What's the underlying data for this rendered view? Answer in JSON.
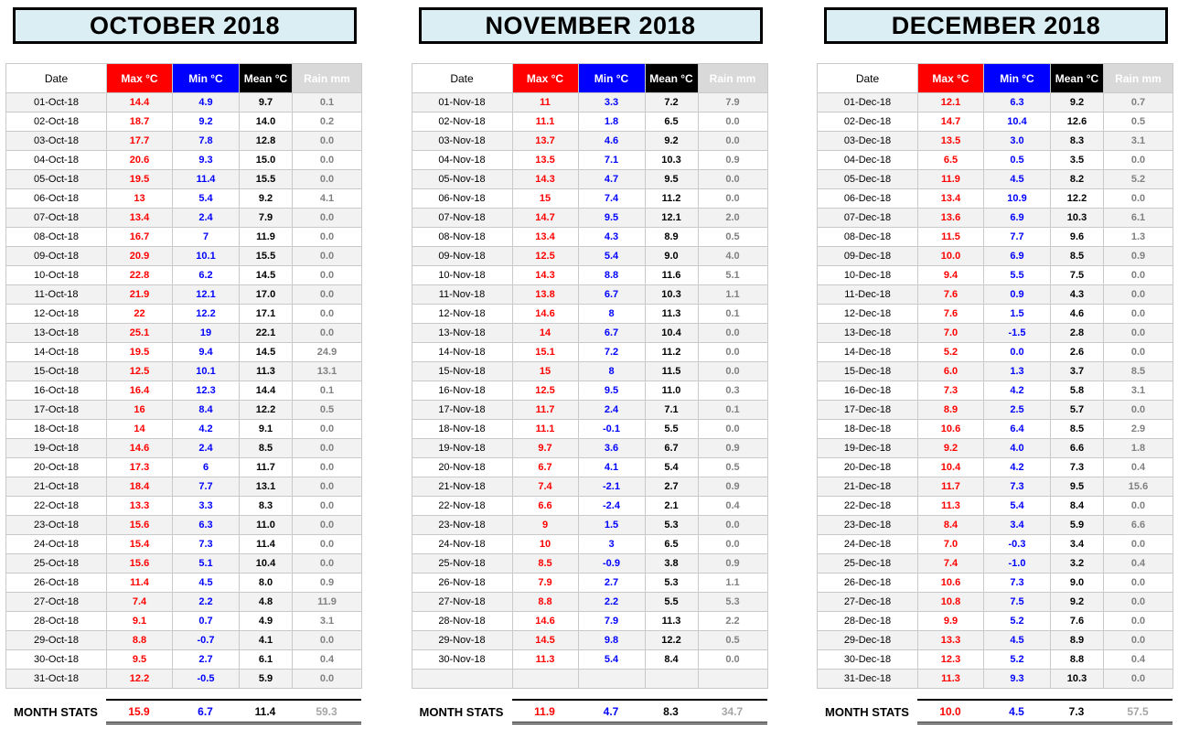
{
  "columns": [
    "Date",
    "Max °C",
    "Min °C",
    "Mean °C",
    "Rain mm"
  ],
  "stats_label": "MONTH STATS",
  "colors": {
    "max_accent": "#FF0000",
    "min_accent": "#0000FF",
    "mean_accent": "#000000",
    "rain_text": "#808080",
    "rain_header_bg": "#D9D9D9",
    "title_bg": "#DAEEF3",
    "row_stripe": "#F2F2F2",
    "stats_rain_text": "#A6A6A6"
  },
  "months": [
    {
      "title": "OCTOBER 2018",
      "rows": [
        [
          "01-Oct-18",
          "14.4",
          "4.9",
          "9.7",
          "0.1"
        ],
        [
          "02-Oct-18",
          "18.7",
          "9.2",
          "14.0",
          "0.2"
        ],
        [
          "03-Oct-18",
          "17.7",
          "7.8",
          "12.8",
          "0.0"
        ],
        [
          "04-Oct-18",
          "20.6",
          "9.3",
          "15.0",
          "0.0"
        ],
        [
          "05-Oct-18",
          "19.5",
          "11.4",
          "15.5",
          "0.0"
        ],
        [
          "06-Oct-18",
          "13",
          "5.4",
          "9.2",
          "4.1"
        ],
        [
          "07-Oct-18",
          "13.4",
          "2.4",
          "7.9",
          "0.0"
        ],
        [
          "08-Oct-18",
          "16.7",
          "7",
          "11.9",
          "0.0"
        ],
        [
          "09-Oct-18",
          "20.9",
          "10.1",
          "15.5",
          "0.0"
        ],
        [
          "10-Oct-18",
          "22.8",
          "6.2",
          "14.5",
          "0.0"
        ],
        [
          "11-Oct-18",
          "21.9",
          "12.1",
          "17.0",
          "0.0"
        ],
        [
          "12-Oct-18",
          "22",
          "12.2",
          "17.1",
          "0.0"
        ],
        [
          "13-Oct-18",
          "25.1",
          "19",
          "22.1",
          "0.0"
        ],
        [
          "14-Oct-18",
          "19.5",
          "9.4",
          "14.5",
          "24.9"
        ],
        [
          "15-Oct-18",
          "12.5",
          "10.1",
          "11.3",
          "13.1"
        ],
        [
          "16-Oct-18",
          "16.4",
          "12.3",
          "14.4",
          "0.1"
        ],
        [
          "17-Oct-18",
          "16",
          "8.4",
          "12.2",
          "0.5"
        ],
        [
          "18-Oct-18",
          "14",
          "4.2",
          "9.1",
          "0.0"
        ],
        [
          "19-Oct-18",
          "14.6",
          "2.4",
          "8.5",
          "0.0"
        ],
        [
          "20-Oct-18",
          "17.3",
          "6",
          "11.7",
          "0.0"
        ],
        [
          "21-Oct-18",
          "18.4",
          "7.7",
          "13.1",
          "0.0"
        ],
        [
          "22-Oct-18",
          "13.3",
          "3.3",
          "8.3",
          "0.0"
        ],
        [
          "23-Oct-18",
          "15.6",
          "6.3",
          "11.0",
          "0.0"
        ],
        [
          "24-Oct-18",
          "15.4",
          "7.3",
          "11.4",
          "0.0"
        ],
        [
          "25-Oct-18",
          "15.6",
          "5.1",
          "10.4",
          "0.0"
        ],
        [
          "26-Oct-18",
          "11.4",
          "4.5",
          "8.0",
          "0.9"
        ],
        [
          "27-Oct-18",
          "7.4",
          "2.2",
          "4.8",
          "11.9"
        ],
        [
          "28-Oct-18",
          "9.1",
          "0.7",
          "4.9",
          "3.1"
        ],
        [
          "29-Oct-18",
          "8.8",
          "-0.7",
          "4.1",
          "0.0"
        ],
        [
          "30-Oct-18",
          "9.5",
          "2.7",
          "6.1",
          "0.4"
        ],
        [
          "31-Oct-18",
          "12.2",
          "-0.5",
          "5.9",
          "0.0"
        ]
      ],
      "stats": [
        "15.9",
        "6.7",
        "11.4",
        "59.3"
      ]
    },
    {
      "title": "NOVEMBER 2018",
      "rows": [
        [
          "01-Nov-18",
          "11",
          "3.3",
          "7.2",
          "7.9"
        ],
        [
          "02-Nov-18",
          "11.1",
          "1.8",
          "6.5",
          "0.0"
        ],
        [
          "03-Nov-18",
          "13.7",
          "4.6",
          "9.2",
          "0.0"
        ],
        [
          "04-Nov-18",
          "13.5",
          "7.1",
          "10.3",
          "0.9"
        ],
        [
          "05-Nov-18",
          "14.3",
          "4.7",
          "9.5",
          "0.0"
        ],
        [
          "06-Nov-18",
          "15",
          "7.4",
          "11.2",
          "0.0"
        ],
        [
          "07-Nov-18",
          "14.7",
          "9.5",
          "12.1",
          "2.0"
        ],
        [
          "08-Nov-18",
          "13.4",
          "4.3",
          "8.9",
          "0.5"
        ],
        [
          "09-Nov-18",
          "12.5",
          "5.4",
          "9.0",
          "4.0"
        ],
        [
          "10-Nov-18",
          "14.3",
          "8.8",
          "11.6",
          "5.1"
        ],
        [
          "11-Nov-18",
          "13.8",
          "6.7",
          "10.3",
          "1.1"
        ],
        [
          "12-Nov-18",
          "14.6",
          "8",
          "11.3",
          "0.1"
        ],
        [
          "13-Nov-18",
          "14",
          "6.7",
          "10.4",
          "0.0"
        ],
        [
          "14-Nov-18",
          "15.1",
          "7.2",
          "11.2",
          "0.0"
        ],
        [
          "15-Nov-18",
          "15",
          "8",
          "11.5",
          "0.0"
        ],
        [
          "16-Nov-18",
          "12.5",
          "9.5",
          "11.0",
          "0.3"
        ],
        [
          "17-Nov-18",
          "11.7",
          "2.4",
          "7.1",
          "0.1"
        ],
        [
          "18-Nov-18",
          "11.1",
          "-0.1",
          "5.5",
          "0.0"
        ],
        [
          "19-Nov-18",
          "9.7",
          "3.6",
          "6.7",
          "0.9"
        ],
        [
          "20-Nov-18",
          "6.7",
          "4.1",
          "5.4",
          "0.5"
        ],
        [
          "21-Nov-18",
          "7.4",
          "-2.1",
          "2.7",
          "0.9"
        ],
        [
          "22-Nov-18",
          "6.6",
          "-2.4",
          "2.1",
          "0.4"
        ],
        [
          "23-Nov-18",
          "9",
          "1.5",
          "5.3",
          "0.0"
        ],
        [
          "24-Nov-18",
          "10",
          "3",
          "6.5",
          "0.0"
        ],
        [
          "25-Nov-18",
          "8.5",
          "-0.9",
          "3.8",
          "0.9"
        ],
        [
          "26-Nov-18",
          "7.9",
          "2.7",
          "5.3",
          "1.1"
        ],
        [
          "27-Nov-18",
          "8.8",
          "2.2",
          "5.5",
          "5.3"
        ],
        [
          "28-Nov-18",
          "14.6",
          "7.9",
          "11.3",
          "2.2"
        ],
        [
          "29-Nov-18",
          "14.5",
          "9.8",
          "12.2",
          "0.5"
        ],
        [
          "30-Nov-18",
          "11.3",
          "5.4",
          "8.4",
          "0.0"
        ],
        [
          "",
          "",
          "",
          "",
          ""
        ]
      ],
      "stats": [
        "11.9",
        "4.7",
        "8.3",
        "34.7"
      ]
    },
    {
      "title": "DECEMBER 2018",
      "rows": [
        [
          "01-Dec-18",
          "12.1",
          "6.3",
          "9.2",
          "0.7"
        ],
        [
          "02-Dec-18",
          "14.7",
          "10.4",
          "12.6",
          "0.5"
        ],
        [
          "03-Dec-18",
          "13.5",
          "3.0",
          "8.3",
          "3.1"
        ],
        [
          "04-Dec-18",
          "6.5",
          "0.5",
          "3.5",
          "0.0"
        ],
        [
          "05-Dec-18",
          "11.9",
          "4.5",
          "8.2",
          "5.2"
        ],
        [
          "06-Dec-18",
          "13.4",
          "10.9",
          "12.2",
          "0.0"
        ],
        [
          "07-Dec-18",
          "13.6",
          "6.9",
          "10.3",
          "6.1"
        ],
        [
          "08-Dec-18",
          "11.5",
          "7.7",
          "9.6",
          "1.3"
        ],
        [
          "09-Dec-18",
          "10.0",
          "6.9",
          "8.5",
          "0.9"
        ],
        [
          "10-Dec-18",
          "9.4",
          "5.5",
          "7.5",
          "0.0"
        ],
        [
          "11-Dec-18",
          "7.6",
          "0.9",
          "4.3",
          "0.0"
        ],
        [
          "12-Dec-18",
          "7.6",
          "1.5",
          "4.6",
          "0.0"
        ],
        [
          "13-Dec-18",
          "7.0",
          "-1.5",
          "2.8",
          "0.0"
        ],
        [
          "14-Dec-18",
          "5.2",
          "0.0",
          "2.6",
          "0.0"
        ],
        [
          "15-Dec-18",
          "6.0",
          "1.3",
          "3.7",
          "8.5"
        ],
        [
          "16-Dec-18",
          "7.3",
          "4.2",
          "5.8",
          "3.1"
        ],
        [
          "17-Dec-18",
          "8.9",
          "2.5",
          "5.7",
          "0.0"
        ],
        [
          "18-Dec-18",
          "10.6",
          "6.4",
          "8.5",
          "2.9"
        ],
        [
          "19-Dec-18",
          "9.2",
          "4.0",
          "6.6",
          "1.8"
        ],
        [
          "20-Dec-18",
          "10.4",
          "4.2",
          "7.3",
          "0.4"
        ],
        [
          "21-Dec-18",
          "11.7",
          "7.3",
          "9.5",
          "15.6"
        ],
        [
          "22-Dec-18",
          "11.3",
          "5.4",
          "8.4",
          "0.0"
        ],
        [
          "23-Dec-18",
          "8.4",
          "3.4",
          "5.9",
          "6.6"
        ],
        [
          "24-Dec-18",
          "7.0",
          "-0.3",
          "3.4",
          "0.0"
        ],
        [
          "25-Dec-18",
          "7.4",
          "-1.0",
          "3.2",
          "0.4"
        ],
        [
          "26-Dec-18",
          "10.6",
          "7.3",
          "9.0",
          "0.0"
        ],
        [
          "27-Dec-18",
          "10.8",
          "7.5",
          "9.2",
          "0.0"
        ],
        [
          "28-Dec-18",
          "9.9",
          "5.2",
          "7.6",
          "0.0"
        ],
        [
          "29-Dec-18",
          "13.3",
          "4.5",
          "8.9",
          "0.0"
        ],
        [
          "30-Dec-18",
          "12.3",
          "5.2",
          "8.8",
          "0.4"
        ],
        [
          "31-Dec-18",
          "11.3",
          "9.3",
          "10.3",
          "0.0"
        ]
      ],
      "stats": [
        "10.0",
        "4.5",
        "7.3",
        "57.5"
      ]
    }
  ]
}
